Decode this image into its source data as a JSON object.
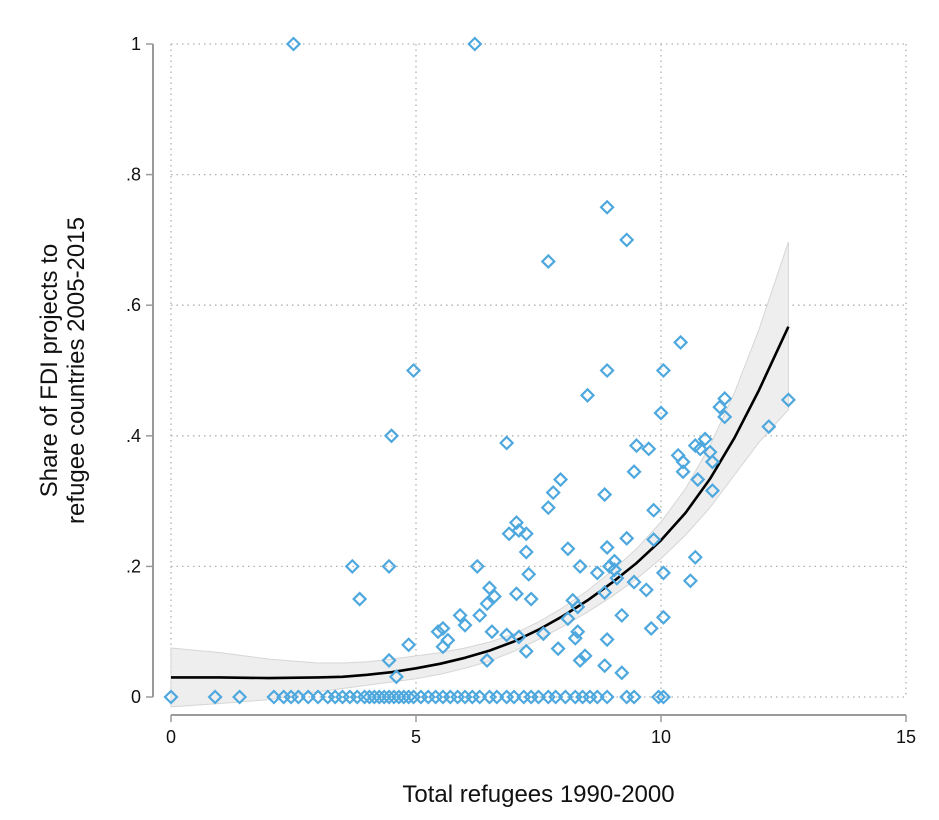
{
  "chart_data": {
    "type": "scatter",
    "title": "",
    "xlabel": "Total refugees 1990-2000",
    "ylabel_lines": [
      "Share of FDI projects to",
      "refugee countries 2005-2015"
    ],
    "xlim": [
      0,
      15
    ],
    "ylim": [
      0,
      1
    ],
    "x_ticks": [
      0,
      5,
      10,
      15
    ],
    "x_tick_labels": [
      "0",
      "5",
      "10",
      "15"
    ],
    "y_ticks": [
      0,
      0.2,
      0.4,
      0.6,
      0.8,
      1
    ],
    "y_tick_labels": [
      "0",
      ".2",
      ".4",
      ".6",
      ".8",
      "1"
    ],
    "grid": true,
    "marker_color": "#4ea8de",
    "fit_color": "#000000",
    "ci_color": "#eeeeee",
    "points": [
      {
        "x": 2.5,
        "y": 1.0
      },
      {
        "x": 6.2,
        "y": 1.0
      },
      {
        "x": 8.9,
        "y": 0.75
      },
      {
        "x": 9.3,
        "y": 0.7
      },
      {
        "x": 7.7,
        "y": 0.667
      },
      {
        "x": 10.4,
        "y": 0.543
      },
      {
        "x": 4.95,
        "y": 0.5
      },
      {
        "x": 8.9,
        "y": 0.5
      },
      {
        "x": 10.05,
        "y": 0.5
      },
      {
        "x": 8.5,
        "y": 0.462
      },
      {
        "x": 12.6,
        "y": 0.455
      },
      {
        "x": 11.3,
        "y": 0.457
      },
      {
        "x": 11.2,
        "y": 0.444
      },
      {
        "x": 10.0,
        "y": 0.435
      },
      {
        "x": 11.3,
        "y": 0.429
      },
      {
        "x": 12.2,
        "y": 0.414
      },
      {
        "x": 4.5,
        "y": 0.4
      },
      {
        "x": 10.9,
        "y": 0.395
      },
      {
        "x": 6.85,
        "y": 0.389
      },
      {
        "x": 9.5,
        "y": 0.385
      },
      {
        "x": 10.7,
        "y": 0.385
      },
      {
        "x": 10.8,
        "y": 0.38
      },
      {
        "x": 9.75,
        "y": 0.38
      },
      {
        "x": 11.0,
        "y": 0.375
      },
      {
        "x": 10.35,
        "y": 0.37
      },
      {
        "x": 10.45,
        "y": 0.36
      },
      {
        "x": 11.05,
        "y": 0.36
      },
      {
        "x": 10.45,
        "y": 0.345
      },
      {
        "x": 9.45,
        "y": 0.345
      },
      {
        "x": 10.75,
        "y": 0.333
      },
      {
        "x": 7.95,
        "y": 0.333
      },
      {
        "x": 11.05,
        "y": 0.316
      },
      {
        "x": 7.8,
        "y": 0.313
      },
      {
        "x": 8.85,
        "y": 0.31
      },
      {
        "x": 7.7,
        "y": 0.29
      },
      {
        "x": 9.85,
        "y": 0.286
      },
      {
        "x": 7.05,
        "y": 0.267
      },
      {
        "x": 7.1,
        "y": 0.255
      },
      {
        "x": 6.9,
        "y": 0.25
      },
      {
        "x": 7.25,
        "y": 0.25
      },
      {
        "x": 9.3,
        "y": 0.243
      },
      {
        "x": 9.85,
        "y": 0.241
      },
      {
        "x": 8.9,
        "y": 0.229
      },
      {
        "x": 8.1,
        "y": 0.227
      },
      {
        "x": 7.25,
        "y": 0.222
      },
      {
        "x": 10.7,
        "y": 0.214
      },
      {
        "x": 9.05,
        "y": 0.208
      },
      {
        "x": 8.95,
        "y": 0.2
      },
      {
        "x": 3.7,
        "y": 0.2
      },
      {
        "x": 4.45,
        "y": 0.2
      },
      {
        "x": 6.25,
        "y": 0.2
      },
      {
        "x": 8.35,
        "y": 0.2
      },
      {
        "x": 9.05,
        "y": 0.195
      },
      {
        "x": 10.05,
        "y": 0.19
      },
      {
        "x": 8.7,
        "y": 0.19
      },
      {
        "x": 7.3,
        "y": 0.188
      },
      {
        "x": 9.1,
        "y": 0.182
      },
      {
        "x": 10.6,
        "y": 0.178
      },
      {
        "x": 9.45,
        "y": 0.176
      },
      {
        "x": 6.5,
        "y": 0.167
      },
      {
        "x": 9.7,
        "y": 0.164
      },
      {
        "x": 8.85,
        "y": 0.16
      },
      {
        "x": 7.05,
        "y": 0.158
      },
      {
        "x": 6.6,
        "y": 0.154
      },
      {
        "x": 3.85,
        "y": 0.15
      },
      {
        "x": 7.35,
        "y": 0.15
      },
      {
        "x": 8.2,
        "y": 0.148
      },
      {
        "x": 6.45,
        "y": 0.143
      },
      {
        "x": 8.3,
        "y": 0.138
      },
      {
        "x": 5.9,
        "y": 0.125
      },
      {
        "x": 6.3,
        "y": 0.125
      },
      {
        "x": 9.2,
        "y": 0.125
      },
      {
        "x": 10.05,
        "y": 0.122
      },
      {
        "x": 8.1,
        "y": 0.12
      },
      {
        "x": 6.0,
        "y": 0.11
      },
      {
        "x": 9.8,
        "y": 0.105
      },
      {
        "x": 5.55,
        "y": 0.105
      },
      {
        "x": 5.45,
        "y": 0.1
      },
      {
        "x": 6.55,
        "y": 0.1
      },
      {
        "x": 8.3,
        "y": 0.1
      },
      {
        "x": 7.6,
        "y": 0.097
      },
      {
        "x": 6.85,
        "y": 0.095
      },
      {
        "x": 7.1,
        "y": 0.092
      },
      {
        "x": 8.25,
        "y": 0.09
      },
      {
        "x": 8.9,
        "y": 0.088
      },
      {
        "x": 5.65,
        "y": 0.087
      },
      {
        "x": 4.85,
        "y": 0.08
      },
      {
        "x": 5.55,
        "y": 0.077
      },
      {
        "x": 7.9,
        "y": 0.074
      },
      {
        "x": 7.25,
        "y": 0.07
      },
      {
        "x": 8.45,
        "y": 0.063
      },
      {
        "x": 8.35,
        "y": 0.056
      },
      {
        "x": 4.45,
        "y": 0.056
      },
      {
        "x": 6.45,
        "y": 0.056
      },
      {
        "x": 8.85,
        "y": 0.048
      },
      {
        "x": 9.2,
        "y": 0.037
      },
      {
        "x": 4.6,
        "y": 0.031
      },
      {
        "x": 0.0,
        "y": 0
      },
      {
        "x": 0.9,
        "y": 0
      },
      {
        "x": 1.4,
        "y": 0
      },
      {
        "x": 2.1,
        "y": 0
      },
      {
        "x": 2.3,
        "y": 0
      },
      {
        "x": 2.45,
        "y": 0
      },
      {
        "x": 2.6,
        "y": 0
      },
      {
        "x": 2.8,
        "y": 0
      },
      {
        "x": 3.0,
        "y": 0
      },
      {
        "x": 3.2,
        "y": 0
      },
      {
        "x": 3.35,
        "y": 0
      },
      {
        "x": 3.5,
        "y": 0
      },
      {
        "x": 3.65,
        "y": 0
      },
      {
        "x": 3.8,
        "y": 0
      },
      {
        "x": 3.95,
        "y": 0
      },
      {
        "x": 4.05,
        "y": 0
      },
      {
        "x": 4.15,
        "y": 0
      },
      {
        "x": 4.25,
        "y": 0
      },
      {
        "x": 4.35,
        "y": 0
      },
      {
        "x": 4.45,
        "y": 0
      },
      {
        "x": 4.55,
        "y": 0
      },
      {
        "x": 4.65,
        "y": 0
      },
      {
        "x": 4.75,
        "y": 0
      },
      {
        "x": 4.85,
        "y": 0
      },
      {
        "x": 4.95,
        "y": 0
      },
      {
        "x": 5.1,
        "y": 0
      },
      {
        "x": 5.25,
        "y": 0
      },
      {
        "x": 5.4,
        "y": 0
      },
      {
        "x": 5.55,
        "y": 0
      },
      {
        "x": 5.7,
        "y": 0
      },
      {
        "x": 5.85,
        "y": 0
      },
      {
        "x": 6.0,
        "y": 0
      },
      {
        "x": 6.15,
        "y": 0
      },
      {
        "x": 6.3,
        "y": 0
      },
      {
        "x": 6.5,
        "y": 0
      },
      {
        "x": 6.65,
        "y": 0
      },
      {
        "x": 6.85,
        "y": 0
      },
      {
        "x": 7.0,
        "y": 0
      },
      {
        "x": 7.2,
        "y": 0
      },
      {
        "x": 7.35,
        "y": 0
      },
      {
        "x": 7.5,
        "y": 0
      },
      {
        "x": 7.7,
        "y": 0
      },
      {
        "x": 7.85,
        "y": 0
      },
      {
        "x": 8.05,
        "y": 0
      },
      {
        "x": 8.25,
        "y": 0
      },
      {
        "x": 8.4,
        "y": 0
      },
      {
        "x": 8.55,
        "y": 0
      },
      {
        "x": 8.7,
        "y": 0
      },
      {
        "x": 8.9,
        "y": 0
      },
      {
        "x": 9.3,
        "y": 0
      },
      {
        "x": 9.45,
        "y": 0
      },
      {
        "x": 9.95,
        "y": 0
      },
      {
        "x": 10.05,
        "y": 0
      }
    ],
    "fit_line": {
      "x": [
        0,
        1,
        2,
        3,
        3.5,
        4,
        4.5,
        5,
        5.5,
        6,
        6.5,
        7,
        7.5,
        8,
        8.5,
        9,
        9.5,
        10,
        10.5,
        11,
        11.5,
        12,
        12.6
      ],
      "y": [
        0.03,
        0.03,
        0.029,
        0.03,
        0.031,
        0.034,
        0.038,
        0.044,
        0.051,
        0.06,
        0.071,
        0.085,
        0.103,
        0.124,
        0.148,
        0.175,
        0.205,
        0.24,
        0.282,
        0.334,
        0.397,
        0.47,
        0.567
      ]
    },
    "ci_band": {
      "x": [
        0,
        1,
        2,
        3,
        3.5,
        4,
        4.5,
        5,
        5.5,
        6,
        6.5,
        7,
        7.5,
        8,
        8.5,
        9,
        9.5,
        10,
        10.5,
        11,
        11.5,
        12,
        12.6
      ],
      "upper": [
        0.075,
        0.068,
        0.058,
        0.052,
        0.052,
        0.054,
        0.058,
        0.063,
        0.068,
        0.075,
        0.084,
        0.097,
        0.115,
        0.137,
        0.163,
        0.193,
        0.227,
        0.268,
        0.319,
        0.385,
        0.466,
        0.563,
        0.697
      ],
      "lower": [
        -0.015,
        -0.01,
        -0.004,
        0.008,
        0.013,
        0.018,
        0.023,
        0.028,
        0.035,
        0.044,
        0.055,
        0.07,
        0.088,
        0.108,
        0.13,
        0.154,
        0.181,
        0.212,
        0.248,
        0.29,
        0.34,
        0.39,
        0.44
      ]
    }
  }
}
